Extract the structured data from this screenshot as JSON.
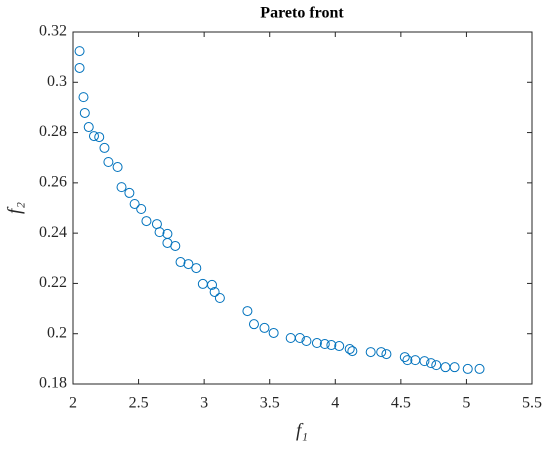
{
  "chart_data": {
    "type": "scatter",
    "title": "Pareto front",
    "x_label": "f₁",
    "y_label": "f₂",
    "color": "#0072bd",
    "x": [
      2.05,
      2.05,
      2.08,
      2.09,
      2.12,
      2.16,
      2.2,
      2.24,
      2.27,
      2.34,
      2.37,
      2.43,
      2.47,
      2.52,
      2.56,
      2.64,
      2.66,
      2.72,
      2.72,
      2.78,
      2.82,
      2.88,
      2.94,
      2.99,
      3.06,
      3.08,
      3.12,
      3.33,
      3.38,
      3.46,
      3.53,
      3.66,
      3.73,
      3.78,
      3.86,
      3.92,
      3.97,
      4.03,
      4.11,
      4.13,
      4.27,
      4.35,
      4.39,
      4.53,
      4.55,
      4.61,
      4.68,
      4.73,
      4.77,
      4.84,
      4.91,
      5.01,
      5.1
    ],
    "values": [
      0.3124,
      0.3057,
      0.2941,
      0.2878,
      0.2822,
      0.2786,
      0.2782,
      0.2739,
      0.2683,
      0.2663,
      0.2583,
      0.256,
      0.2516,
      0.2496,
      0.2448,
      0.2436,
      0.2404,
      0.2397,
      0.2361,
      0.2349,
      0.2285,
      0.2277,
      0.2261,
      0.2198,
      0.2194,
      0.2166,
      0.2142,
      0.209,
      0.2038,
      0.2023,
      0.2003,
      0.1983,
      0.1983,
      0.1971,
      0.1963,
      0.1959,
      0.1955,
      0.1951,
      0.1939,
      0.1931,
      0.1927,
      0.1927,
      0.1919,
      0.1907,
      0.1895,
      0.1895,
      0.1891,
      0.1883,
      0.1875,
      0.1867,
      0.1867,
      0.186,
      0.186
    ],
    "xlim": [
      2,
      5.5
    ],
    "xticks": [
      2,
      2.5,
      3,
      3.5,
      4,
      4.5,
      5,
      5.5
    ],
    "ylim": [
      0.18,
      0.32
    ],
    "yticks": [
      0.18,
      0.2,
      0.22,
      0.24,
      0.26,
      0.28,
      0.3,
      0.32
    ],
    "grid": false
  }
}
